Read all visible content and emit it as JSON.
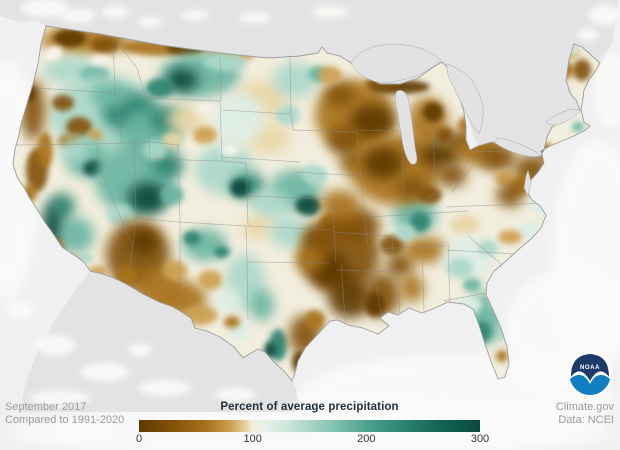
{
  "page": {
    "background": "#efefef"
  },
  "captions": {
    "period": "September 2017",
    "baseline": "Compared to 1991-2020",
    "source_site": "Climate.gov",
    "source_data": "Data: NCEI"
  },
  "legend": {
    "title": "Percent of average precipitation",
    "range": [
      0,
      300
    ],
    "ticks": [
      {
        "label": "0",
        "pos": 0
      },
      {
        "label": "100",
        "pos": 0.3333
      },
      {
        "label": "200",
        "pos": 0.6667
      },
      {
        "label": "300",
        "pos": 1
      }
    ],
    "gradient_stops": [
      [
        0,
        "#5f3a02"
      ],
      [
        0.1,
        "#835207"
      ],
      [
        0.2,
        "#a9731c"
      ],
      [
        0.27,
        "#cda052"
      ],
      [
        0.31,
        "#e5cf9f"
      ],
      [
        0.3333,
        "#f3efdf"
      ],
      [
        0.37,
        "#e6f0e7"
      ],
      [
        0.43,
        "#cfe7dd"
      ],
      [
        0.5,
        "#a8d5c6"
      ],
      [
        0.58,
        "#7fc0ae"
      ],
      [
        0.6667,
        "#4da28e"
      ],
      [
        0.78,
        "#2a8270"
      ],
      [
        0.9,
        "#12604e"
      ],
      [
        1,
        "#0a4a3c"
      ]
    ]
  },
  "logo": {
    "org": "NOAA",
    "text": "NOAA",
    "dark_color": "#1e3a68",
    "light_color": "#0f7fc2"
  },
  "map": {
    "region": "Contiguous United States",
    "base_fill": "#f2eedd",
    "canada_fill": "#e3e3e3",
    "mexico_fill": "#e3e3e3",
    "lake_fill": "#e2e2e2",
    "border_color": "#9c9c9c",
    "palette": {
      "B5": "#5f3a02",
      "B4": "#835207",
      "B3": "#a9731c",
      "B2": "#cda052",
      "B1": "#e9d7a8",
      "N": "#f2eedd",
      "T1": "#ddeee6",
      "T2": "#abd8ca",
      "T3": "#6bb5a2",
      "T4": "#2d8471",
      "T5": "#0a4a3c",
      "W": "#f8f5ec"
    },
    "blobs": [
      [
        85,
        40,
        45,
        14,
        "B3"
      ],
      [
        70,
        38,
        16,
        9,
        "B5"
      ],
      [
        105,
        45,
        14,
        8,
        "B4"
      ],
      [
        165,
        47,
        45,
        9,
        "B3"
      ],
      [
        185,
        49,
        18,
        6,
        "B5"
      ],
      [
        230,
        55,
        25,
        7,
        "B2"
      ],
      [
        70,
        70,
        28,
        14,
        "T2"
      ],
      [
        95,
        75,
        15,
        9,
        "T3"
      ],
      [
        55,
        52,
        8,
        6,
        "W"
      ],
      [
        100,
        60,
        10,
        5,
        "W"
      ],
      [
        105,
        115,
        55,
        40,
        "T2"
      ],
      [
        130,
        112,
        28,
        20,
        "T4"
      ],
      [
        150,
        135,
        30,
        25,
        "T3"
      ],
      [
        168,
        120,
        18,
        14,
        "T4"
      ],
      [
        110,
        95,
        20,
        12,
        "T3"
      ],
      [
        63,
        103,
        11,
        8,
        "B4"
      ],
      [
        79,
        127,
        13,
        10,
        "B4"
      ],
      [
        69,
        141,
        11,
        7,
        "B3"
      ],
      [
        95,
        135,
        8,
        6,
        "B2"
      ],
      [
        33,
        110,
        12,
        30,
        "B4"
      ],
      [
        27,
        93,
        9,
        9,
        "B5"
      ],
      [
        37,
        170,
        11,
        22,
        "B4"
      ],
      [
        30,
        193,
        7,
        9,
        "B3"
      ],
      [
        45,
        150,
        8,
        18,
        "B3"
      ],
      [
        88,
        160,
        22,
        18,
        "T3"
      ],
      [
        93,
        168,
        10,
        8,
        "T5"
      ],
      [
        75,
        150,
        15,
        12,
        "T2"
      ],
      [
        54,
        228,
        12,
        26,
        "T5"
      ],
      [
        62,
        206,
        13,
        13,
        "T4"
      ],
      [
        76,
        235,
        18,
        18,
        "T3"
      ],
      [
        55,
        250,
        8,
        12,
        "B3"
      ],
      [
        70,
        262,
        11,
        6,
        "B3"
      ],
      [
        86,
        258,
        7,
        5,
        "T2"
      ],
      [
        97,
        272,
        9,
        6,
        "B2"
      ],
      [
        135,
        180,
        40,
        35,
        "T3"
      ],
      [
        148,
        198,
        20,
        16,
        "T5"
      ],
      [
        168,
        165,
        16,
        13,
        "T4"
      ],
      [
        120,
        215,
        13,
        11,
        "T2"
      ],
      [
        172,
        195,
        12,
        10,
        "T3"
      ],
      [
        155,
        150,
        12,
        10,
        "T2"
      ],
      [
        138,
        255,
        32,
        35,
        "B4"
      ],
      [
        143,
        242,
        15,
        13,
        "B5"
      ],
      [
        127,
        276,
        11,
        11,
        "B3"
      ],
      [
        160,
        290,
        25,
        22,
        "B3"
      ],
      [
        185,
        300,
        22,
        18,
        "B3"
      ],
      [
        200,
        315,
        18,
        10,
        "B2"
      ],
      [
        175,
        270,
        12,
        10,
        "B2"
      ],
      [
        205,
        245,
        22,
        16,
        "T3"
      ],
      [
        192,
        238,
        9,
        7,
        "T4"
      ],
      [
        222,
        252,
        8,
        6,
        "T4"
      ],
      [
        200,
        75,
        40,
        22,
        "T3"
      ],
      [
        182,
        80,
        16,
        12,
        "T5"
      ],
      [
        225,
        62,
        22,
        9,
        "T2"
      ],
      [
        160,
        88,
        14,
        10,
        "T4"
      ],
      [
        262,
        100,
        26,
        20,
        "B1"
      ],
      [
        268,
        138,
        22,
        16,
        "B1"
      ],
      [
        240,
        118,
        25,
        25,
        "T1"
      ],
      [
        295,
        80,
        22,
        18,
        "T2"
      ],
      [
        318,
        74,
        10,
        8,
        "T3"
      ],
      [
        288,
        115,
        12,
        10,
        "T2"
      ],
      [
        185,
        120,
        18,
        14,
        "B1"
      ],
      [
        205,
        135,
        12,
        9,
        "B2"
      ],
      [
        172,
        140,
        10,
        8,
        "B1"
      ],
      [
        225,
        170,
        30,
        25,
        "T2"
      ],
      [
        248,
        186,
        17,
        13,
        "T4"
      ],
      [
        240,
        188,
        10,
        9,
        "T5"
      ],
      [
        295,
        190,
        26,
        20,
        "T3"
      ],
      [
        308,
        206,
        13,
        10,
        "T5"
      ],
      [
        270,
        205,
        20,
        15,
        "T2"
      ],
      [
        315,
        175,
        12,
        10,
        "T2"
      ],
      [
        258,
        228,
        16,
        12,
        "B1"
      ],
      [
        290,
        232,
        20,
        16,
        "T2"
      ],
      [
        318,
        243,
        10,
        8,
        "T3"
      ],
      [
        335,
        222,
        15,
        10,
        "B3"
      ],
      [
        245,
        282,
        20,
        28,
        "T2"
      ],
      [
        262,
        305,
        12,
        16,
        "T3"
      ],
      [
        278,
        345,
        9,
        16,
        "T4"
      ],
      [
        270,
        350,
        6,
        8,
        "T5"
      ],
      [
        240,
        330,
        12,
        10,
        "T1"
      ],
      [
        228,
        300,
        14,
        12,
        "T1"
      ],
      [
        232,
        322,
        8,
        6,
        "B3"
      ],
      [
        210,
        280,
        12,
        10,
        "B2"
      ],
      [
        340,
        255,
        40,
        38,
        "B4"
      ],
      [
        330,
        270,
        20,
        18,
        "B5"
      ],
      [
        350,
        298,
        22,
        20,
        "B5"
      ],
      [
        322,
        238,
        18,
        14,
        "B4"
      ],
      [
        355,
        225,
        25,
        18,
        "B4"
      ],
      [
        340,
        205,
        20,
        15,
        "B3"
      ],
      [
        310,
        260,
        14,
        12,
        "B3"
      ],
      [
        305,
        335,
        16,
        20,
        "B4"
      ],
      [
        300,
        362,
        8,
        11,
        "B5"
      ],
      [
        315,
        320,
        10,
        10,
        "B3"
      ],
      [
        382,
        295,
        18,
        22,
        "B4"
      ],
      [
        375,
        305,
        10,
        12,
        "B5"
      ],
      [
        400,
        265,
        14,
        13,
        "B4"
      ],
      [
        412,
        288,
        12,
        14,
        "B3"
      ],
      [
        425,
        250,
        22,
        13,
        "B3"
      ],
      [
        392,
        245,
        12,
        10,
        "B4"
      ],
      [
        415,
        215,
        22,
        18,
        "T3"
      ],
      [
        420,
        222,
        10,
        10,
        "T4"
      ],
      [
        405,
        232,
        10,
        8,
        "T2"
      ],
      [
        355,
        115,
        40,
        35,
        "B3"
      ],
      [
        372,
        122,
        22,
        18,
        "B5"
      ],
      [
        340,
        95,
        15,
        12,
        "B4"
      ],
      [
        345,
        140,
        18,
        15,
        "B4"
      ],
      [
        355,
        162,
        15,
        12,
        "B4"
      ],
      [
        330,
        75,
        12,
        9,
        "B2"
      ],
      [
        400,
        87,
        30,
        7,
        "B5"
      ],
      [
        380,
        84,
        15,
        6,
        "B4"
      ],
      [
        428,
        122,
        20,
        25,
        "B3"
      ],
      [
        433,
        112,
        10,
        10,
        "B5"
      ],
      [
        445,
        135,
        8,
        8,
        "B4"
      ],
      [
        410,
        150,
        15,
        12,
        "B3"
      ],
      [
        395,
        170,
        45,
        35,
        "B3"
      ],
      [
        383,
        163,
        20,
        16,
        "B5"
      ],
      [
        412,
        188,
        16,
        12,
        "B4"
      ],
      [
        440,
        155,
        20,
        14,
        "B5"
      ],
      [
        462,
        143,
        18,
        13,
        "B4"
      ],
      [
        452,
        175,
        15,
        12,
        "B4"
      ],
      [
        480,
        150,
        22,
        16,
        "B3"
      ],
      [
        498,
        158,
        18,
        14,
        "B4"
      ],
      [
        472,
        125,
        14,
        10,
        "B3"
      ],
      [
        430,
        195,
        12,
        9,
        "B4"
      ],
      [
        515,
        112,
        25,
        15,
        "B3"
      ],
      [
        505,
        95,
        10,
        7,
        "B4"
      ],
      [
        540,
        88,
        22,
        18,
        "B2"
      ],
      [
        560,
        70,
        14,
        10,
        "B3"
      ],
      [
        582,
        70,
        9,
        11,
        "B4"
      ],
      [
        570,
        52,
        9,
        7,
        "B2"
      ],
      [
        548,
        108,
        12,
        8,
        "B2"
      ],
      [
        532,
        170,
        18,
        15,
        "B4"
      ],
      [
        545,
        152,
        10,
        9,
        "B3"
      ],
      [
        520,
        185,
        12,
        10,
        "B3"
      ],
      [
        505,
        178,
        10,
        8,
        "B2"
      ],
      [
        510,
        195,
        14,
        12,
        "B4"
      ],
      [
        545,
        205,
        15,
        10,
        "T1"
      ],
      [
        530,
        230,
        12,
        9,
        "T1"
      ],
      [
        510,
        237,
        12,
        7,
        "B2"
      ],
      [
        465,
        225,
        15,
        10,
        "B1"
      ],
      [
        468,
        258,
        26,
        22,
        "T1"
      ],
      [
        460,
        268,
        13,
        10,
        "T2"
      ],
      [
        472,
        285,
        9,
        7,
        "T3"
      ],
      [
        488,
        248,
        10,
        8,
        "T2"
      ],
      [
        486,
        318,
        18,
        26,
        "T3"
      ],
      [
        482,
        332,
        9,
        11,
        "T4"
      ],
      [
        496,
        302,
        8,
        8,
        "T2"
      ],
      [
        502,
        356,
        6,
        6,
        "B3"
      ],
      [
        505,
        330,
        7,
        9,
        "T2"
      ],
      [
        470,
        305,
        12,
        8,
        "T1"
      ],
      [
        578,
        127,
        6,
        5,
        "T3"
      ],
      [
        572,
        50,
        8,
        5,
        "T1"
      ],
      [
        564,
        90,
        5,
        4,
        "T2"
      ],
      [
        52,
        55,
        8,
        5,
        "W"
      ],
      [
        205,
        108,
        8,
        5,
        "W"
      ],
      [
        230,
        150,
        10,
        6,
        "W"
      ]
    ]
  }
}
